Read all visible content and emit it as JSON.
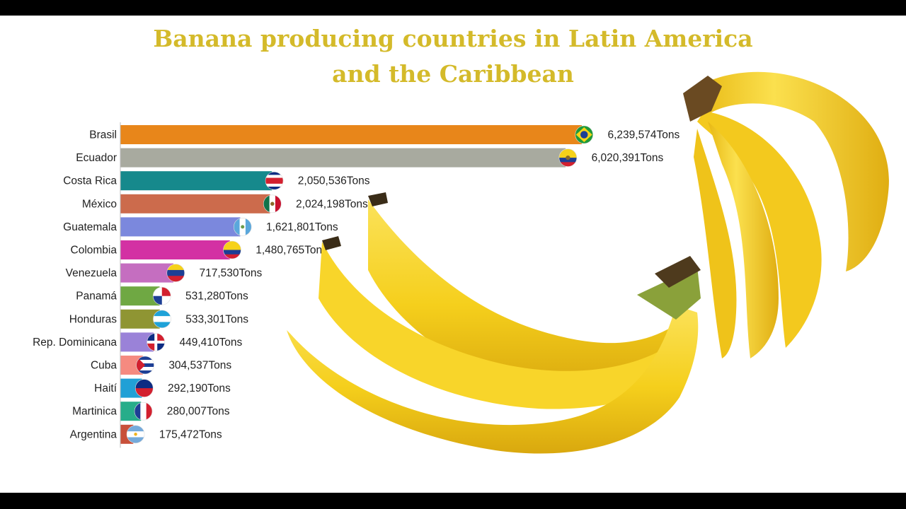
{
  "title_line1": "Banana producing countries in Latin America",
  "title_line2": "and the Caribbean",
  "chart_data": {
    "type": "bar",
    "orientation": "horizontal",
    "unit": "Tons",
    "xlim": [
      0,
      6239574
    ],
    "categories": [
      "Brasil",
      "Ecuador",
      "Costa Rica",
      "México",
      "Guatemala",
      "Colombia",
      "Venezuela",
      "Panamá",
      "Honduras",
      "Rep. Dominicana",
      "Cuba",
      "Haití",
      "Martinica",
      "Argentina"
    ],
    "values": [
      6239574,
      6020391,
      2050536,
      2024198,
      1621801,
      1480765,
      717530,
      531280,
      533301,
      449410,
      304537,
      292190,
      280007,
      175472
    ],
    "value_labels": [
      "6,239,574Tons",
      "6,020,391Tons",
      "2,050,536Tons",
      "2,024,198Tons",
      "1,621,801Tons",
      "1,480,765Tons",
      "717,530Tons",
      "531,280Tons",
      "533,301Tons",
      "449,410Tons",
      "304,537Tons",
      "292,190Tons",
      "280,007Tons",
      "175,472Tons"
    ],
    "colors": [
      "#e8861a",
      "#a8aa9f",
      "#16898c",
      "#cc6b4c",
      "#7b88dd",
      "#d331a3",
      "#c56ec0",
      "#6fa843",
      "#8f9533",
      "#9a82d8",
      "#f58a80",
      "#21a0d6",
      "#27ad8a",
      "#c8503a"
    ],
    "flags": [
      "brazil-flag",
      "ecuador-flag",
      "costa-rica-flag",
      "mexico-flag",
      "guatemala-flag",
      "colombia-flag",
      "venezuela-flag",
      "panama-flag",
      "honduras-flag",
      "dominican-republic-flag",
      "cuba-flag",
      "haiti-flag",
      "martinique-flag",
      "argentina-flag"
    ]
  }
}
